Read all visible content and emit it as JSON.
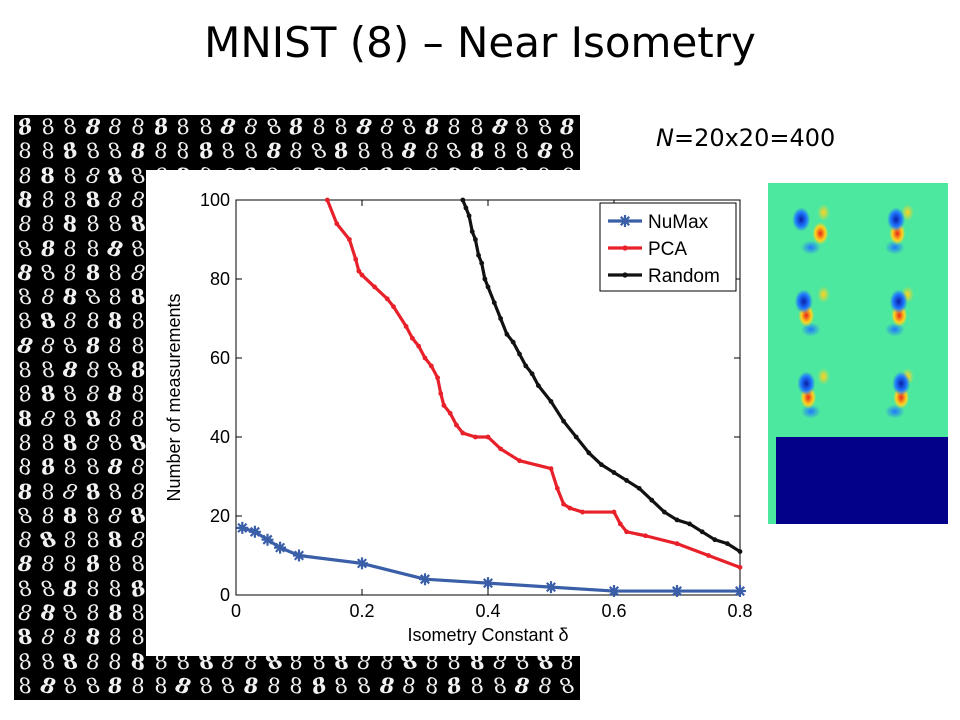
{
  "slide": {
    "title": "MNIST (8) – Near Isometry",
    "n_label_italic": "N",
    "n_label_rest": "=20x20=400"
  },
  "mnist_grid": {
    "digit": "8",
    "rows": 24,
    "cols": 25
  },
  "heatmap": {
    "tiles": 6,
    "colors": {
      "background": "#4de8a0",
      "empty_region": "#03008a",
      "positive": "#e8241a",
      "high": "#ffd21e",
      "low": "#1e78ff",
      "negative": "#0a1ea8"
    }
  },
  "chart_data": {
    "type": "line",
    "xlabel": "Isometry Constant δ",
    "ylabel": "Number of measurements",
    "xlim": [
      0,
      0.8
    ],
    "ylim": [
      0,
      100
    ],
    "xticks": [
      0,
      0.2,
      0.4,
      0.6,
      0.8
    ],
    "xtick_labels": [
      "0",
      "0.2",
      "0.4",
      "0.6",
      "0.8"
    ],
    "yticks": [
      0,
      20,
      40,
      60,
      80,
      100
    ],
    "ytick_labels": [
      "0",
      "20",
      "40",
      "60",
      "80",
      "100"
    ],
    "legend_position": "top-right",
    "grid": false,
    "series": [
      {
        "name": "NuMax",
        "color": "#3a5fa8",
        "marker": "star",
        "x": [
          0.01,
          0.03,
          0.05,
          0.07,
          0.1,
          0.2,
          0.3,
          0.4,
          0.5,
          0.6,
          0.7,
          0.8
        ],
        "y": [
          17,
          16,
          14,
          12,
          10,
          8,
          4,
          3,
          2,
          1,
          1,
          1
        ]
      },
      {
        "name": "PCA",
        "color": "#e8202a",
        "marker": "dot",
        "x": [
          0.145,
          0.16,
          0.18,
          0.19,
          0.195,
          0.2,
          0.22,
          0.24,
          0.25,
          0.27,
          0.28,
          0.29,
          0.3,
          0.31,
          0.32,
          0.325,
          0.33,
          0.34,
          0.35,
          0.36,
          0.38,
          0.4,
          0.42,
          0.45,
          0.5,
          0.51,
          0.52,
          0.53,
          0.55,
          0.6,
          0.61,
          0.62,
          0.65,
          0.7,
          0.75,
          0.8
        ],
        "y": [
          100,
          94,
          90,
          85,
          82,
          81,
          78,
          75,
          73,
          68,
          65,
          63,
          60,
          58,
          55,
          51,
          48,
          46,
          43,
          41,
          40,
          40,
          37,
          34,
          32,
          27,
          23,
          22,
          21,
          21,
          18,
          16,
          15,
          13,
          10,
          7
        ]
      },
      {
        "name": "Random",
        "color": "#111111",
        "marker": "dot",
        "x": [
          0.36,
          0.365,
          0.37,
          0.375,
          0.38,
          0.385,
          0.39,
          0.395,
          0.4,
          0.41,
          0.42,
          0.43,
          0.44,
          0.45,
          0.46,
          0.47,
          0.48,
          0.5,
          0.52,
          0.54,
          0.56,
          0.58,
          0.6,
          0.62,
          0.64,
          0.66,
          0.68,
          0.7,
          0.72,
          0.74,
          0.76,
          0.78,
          0.8
        ],
        "y": [
          100,
          98,
          96,
          92,
          90,
          86,
          84,
          80,
          78,
          74,
          70,
          66,
          64,
          61,
          58,
          56,
          53,
          49,
          44,
          40,
          36,
          33,
          31,
          29,
          27,
          24,
          21,
          19,
          18,
          16,
          14,
          13,
          11
        ]
      }
    ]
  }
}
